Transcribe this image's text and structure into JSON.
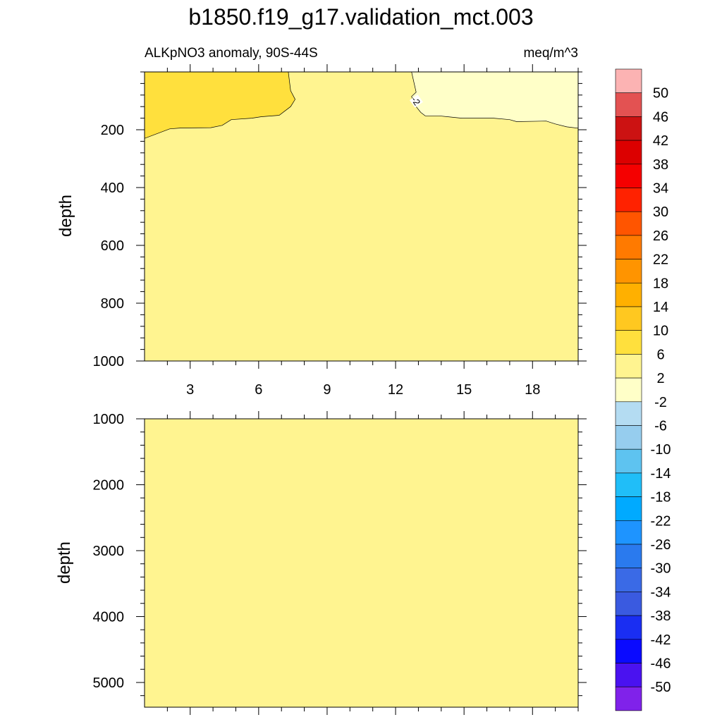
{
  "chart_data": {
    "type": "heatmap",
    "title": "b1850.f19_g17.validation_mct.003",
    "panels": [
      {
        "position": "top",
        "left_label": "ALKpNO3 anomaly, 90S-44S",
        "right_label": "meq/m^3",
        "ylabel": "depth",
        "ylim": [
          0,
          1000
        ],
        "y_reversed": true,
        "y_ticks": [
          "200",
          "400",
          "600",
          "800",
          "1000"
        ],
        "xlim": [
          1,
          20
        ],
        "x_ticks": [
          "3",
          "6",
          "9",
          "12",
          "15",
          "18"
        ],
        "background_level": "-2 to 2",
        "contour_label": "-2",
        "regions": [
          {
            "level": "2 to 6",
            "boundary": [
              [
                1,
                0
              ],
              [
                7.3,
                0
              ],
              [
                7.4,
                65
              ],
              [
                7.6,
                95
              ],
              [
                7.4,
                120
              ],
              [
                6.9,
                150
              ],
              [
                6.1,
                155
              ],
              [
                5.7,
                160
              ],
              [
                4.8,
                165
              ],
              [
                4.4,
                185
              ],
              [
                3.9,
                193
              ],
              [
                2.6,
                194
              ],
              [
                2.1,
                197
              ],
              [
                1,
                230
              ]
            ]
          },
          {
            "level": "-6 to -2",
            "boundary": [
              [
                12.7,
                0
              ],
              [
                20,
                0
              ],
              [
                20,
                195
              ],
              [
                19.5,
                190
              ],
              [
                19,
                180
              ],
              [
                18.6,
                170
              ],
              [
                17.3,
                172
              ],
              [
                17,
                165
              ],
              [
                16.3,
                160
              ],
              [
                14.9,
                160
              ],
              [
                14.3,
                155
              ],
              [
                13.9,
                152
              ],
              [
                13.3,
                152
              ],
              [
                13.1,
                140
              ],
              [
                12.9,
                120
              ],
              [
                12.7,
                85
              ],
              [
                12.9,
                70
              ]
            ]
          }
        ]
      },
      {
        "position": "bottom",
        "ylabel": "depth",
        "ylim": [
          1000,
          5375
        ],
        "y_reversed": true,
        "y_ticks": [
          "1000",
          "2000",
          "3000",
          "4000",
          "5000"
        ],
        "xlim": [
          1,
          20
        ],
        "background_level": "-2 to 2"
      }
    ],
    "colorbar": {
      "labels": [
        "50",
        "46",
        "42",
        "38",
        "34",
        "30",
        "26",
        "22",
        "18",
        "14",
        "10",
        "6",
        "2",
        "-2",
        "-6",
        "-10",
        "-14",
        "-18",
        "-22",
        "-26",
        "-30",
        "-34",
        "-38",
        "-42",
        "-46",
        "-50"
      ],
      "colors": [
        "#fcb3b3",
        "#e35252",
        "#cc1212",
        "#dc0000",
        "#f50000",
        "#ff2200",
        "#ff5500",
        "#ff7a00",
        "#ff9400",
        "#ffb000",
        "#ffc820",
        "#ffe03d",
        "#fff490",
        "#ffffc8",
        "#b4dcf2",
        "#96cdee",
        "#5ec3f0",
        "#20bef8",
        "#00aaff",
        "#1e94ff",
        "#2a7aee",
        "#3a6ae6",
        "#3a5ae0",
        "#1a2ef2",
        "#0a0aff",
        "#4a12f0",
        "#8022ea"
      ]
    }
  }
}
